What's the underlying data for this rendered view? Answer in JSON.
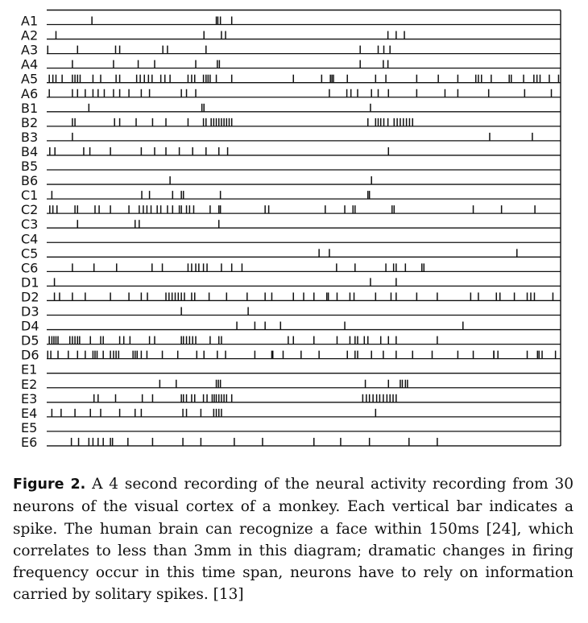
{
  "figure": {
    "label": "Figure 2.",
    "caption": "A 4 second recording of the neural activity recording from 30 neurons of the visual cortex of a monkey. Each vertical bar indicates a spike.  The human brain can recognize a face within 150ms [24], which correlates to less than 3mm in this diagram; dramatic changes in firing frequency occur in this time span, neurons have to rely on information carried by solitary spikes. [13]"
  },
  "chart_data": {
    "type": "scatter",
    "description_units": "spike times, fraction of the 4 s recording (0 = start, 1 = end)",
    "xlim": [
      0,
      1
    ],
    "series": [
      {
        "name": "A1",
        "values": [
          0.088,
          0.33,
          0.333,
          0.338,
          0.36
        ]
      },
      {
        "name": "A2",
        "values": [
          0.018,
          0.306,
          0.34,
          0.348,
          0.664,
          0.68,
          0.696
        ]
      },
      {
        "name": "A3",
        "values": [
          0.002,
          0.06,
          0.134,
          0.142,
          0.226,
          0.235,
          0.31,
          0.61,
          0.645,
          0.656,
          0.668
        ]
      },
      {
        "name": "A4",
        "values": [
          0.05,
          0.13,
          0.178,
          0.21,
          0.29,
          0.332,
          0.336,
          0.61,
          0.655,
          0.664
        ]
      },
      {
        "name": "A5",
        "values": [
          0.005,
          0.012,
          0.018,
          0.03,
          0.05,
          0.055,
          0.06,
          0.065,
          0.09,
          0.105,
          0.135,
          0.142,
          0.175,
          0.182,
          0.19,
          0.198,
          0.205,
          0.222,
          0.23,
          0.24,
          0.275,
          0.282,
          0.288,
          0.305,
          0.31,
          0.314,
          0.318,
          0.33,
          0.36,
          0.48,
          0.535,
          0.552,
          0.555,
          0.558,
          0.585,
          0.64,
          0.66,
          0.72,
          0.762,
          0.8,
          0.835,
          0.84,
          0.846,
          0.865,
          0.9,
          0.904,
          0.928,
          0.948,
          0.954,
          0.96,
          0.978,
          0.996
        ]
      },
      {
        "name": "A6",
        "values": [
          0.005,
          0.05,
          0.06,
          0.075,
          0.09,
          0.1,
          0.112,
          0.13,
          0.142,
          0.16,
          0.184,
          0.2,
          0.262,
          0.272,
          0.29,
          0.55,
          0.584,
          0.592,
          0.605,
          0.632,
          0.645,
          0.665,
          0.72,
          0.775,
          0.8,
          0.86,
          0.93,
          0.982
        ]
      },
      {
        "name": "B1",
        "values": [
          0.082,
          0.302,
          0.306,
          0.63
        ]
      },
      {
        "name": "B2",
        "values": [
          0.05,
          0.055,
          0.132,
          0.142,
          0.174,
          0.206,
          0.232,
          0.275,
          0.305,
          0.31,
          0.32,
          0.325,
          0.33,
          0.335,
          0.34,
          0.345,
          0.35,
          0.355,
          0.36,
          0.625,
          0.64,
          0.645,
          0.65,
          0.656,
          0.664,
          0.676,
          0.682,
          0.688,
          0.694,
          0.7,
          0.706,
          0.712
        ]
      },
      {
        "name": "B3",
        "values": [
          0.05,
          0.862,
          0.945
        ]
      },
      {
        "name": "B4",
        "values": [
          0.006,
          0.016,
          0.072,
          0.084,
          0.124,
          0.184,
          0.21,
          0.232,
          0.258,
          0.284,
          0.31,
          0.335,
          0.352,
          0.665
        ]
      },
      {
        "name": "B5",
        "values": []
      },
      {
        "name": "B6",
        "values": [
          0.24,
          0.632
        ]
      },
      {
        "name": "C1",
        "values": [
          0.01,
          0.185,
          0.2,
          0.245,
          0.262,
          0.266,
          0.338,
          0.625,
          0.628
        ]
      },
      {
        "name": "C2",
        "values": [
          0.006,
          0.012,
          0.02,
          0.055,
          0.06,
          0.094,
          0.102,
          0.124,
          0.16,
          0.18,
          0.188,
          0.195,
          0.203,
          0.215,
          0.222,
          0.235,
          0.245,
          0.258,
          0.262,
          0.272,
          0.278,
          0.286,
          0.318,
          0.335,
          0.338,
          0.425,
          0.432,
          0.542,
          0.58,
          0.596,
          0.6,
          0.672,
          0.676,
          0.83,
          0.885,
          0.95
        ]
      },
      {
        "name": "C3",
        "values": [
          0.06,
          0.172,
          0.18,
          0.335
        ]
      },
      {
        "name": "C4",
        "values": []
      },
      {
        "name": "C5",
        "values": [
          0.53,
          0.55,
          0.915
        ]
      },
      {
        "name": "C6",
        "values": [
          0.05,
          0.092,
          0.136,
          0.205,
          0.225,
          0.275,
          0.282,
          0.29,
          0.296,
          0.305,
          0.312,
          0.34,
          0.36,
          0.38,
          0.564,
          0.6,
          0.66,
          0.675,
          0.68,
          0.698,
          0.73,
          0.734
        ]
      },
      {
        "name": "D1",
        "values": [
          0.015,
          0.63,
          0.68
        ]
      },
      {
        "name": "D2",
        "values": [
          0.015,
          0.025,
          0.05,
          0.075,
          0.124,
          0.16,
          0.184,
          0.196,
          0.232,
          0.238,
          0.244,
          0.25,
          0.256,
          0.262,
          0.268,
          0.282,
          0.288,
          0.316,
          0.35,
          0.39,
          0.425,
          0.438,
          0.48,
          0.5,
          0.52,
          0.545,
          0.548,
          0.565,
          0.59,
          0.598,
          0.64,
          0.67,
          0.68,
          0.72,
          0.76,
          0.825,
          0.84,
          0.875,
          0.882,
          0.91,
          0.935,
          0.942,
          0.949,
          0.985
        ]
      },
      {
        "name": "D3",
        "values": [
          0.262,
          0.392
        ]
      },
      {
        "name": "D4",
        "values": [
          0.37,
          0.405,
          0.425,
          0.455,
          0.58,
          0.81
        ]
      },
      {
        "name": "D5",
        "values": [
          0.005,
          0.01,
          0.014,
          0.018,
          0.022,
          0.045,
          0.05,
          0.055,
          0.06,
          0.064,
          0.085,
          0.105,
          0.11,
          0.142,
          0.15,
          0.162,
          0.2,
          0.21,
          0.262,
          0.266,
          0.272,
          0.278,
          0.284,
          0.29,
          0.318,
          0.335,
          0.34,
          0.47,
          0.48,
          0.52,
          0.565,
          0.59,
          0.6,
          0.605,
          0.618,
          0.625,
          0.65,
          0.665,
          0.68,
          0.76
        ]
      },
      {
        "name": "D6",
        "values": [
          0.002,
          0.008,
          0.022,
          0.042,
          0.06,
          0.075,
          0.09,
          0.094,
          0.098,
          0.11,
          0.124,
          0.13,
          0.135,
          0.14,
          0.168,
          0.172,
          0.176,
          0.184,
          0.195,
          0.225,
          0.255,
          0.292,
          0.306,
          0.332,
          0.348,
          0.405,
          0.438,
          0.44,
          0.46,
          0.495,
          0.53,
          0.585,
          0.6,
          0.605,
          0.632,
          0.655,
          0.68,
          0.712,
          0.75,
          0.8,
          0.83,
          0.87,
          0.87,
          0.878,
          0.935,
          0.955,
          0.958,
          0.964,
          0.99
        ]
      },
      {
        "name": "E1",
        "values": []
      },
      {
        "name": "E2",
        "values": [
          0.22,
          0.252,
          0.33,
          0.334,
          0.338,
          0.62,
          0.665,
          0.688,
          0.692,
          0.698,
          0.702
        ]
      },
      {
        "name": "E3",
        "values": [
          0.092,
          0.1,
          0.134,
          0.186,
          0.206,
          0.262,
          0.266,
          0.272,
          0.282,
          0.288,
          0.305,
          0.312,
          0.322,
          0.326,
          0.33,
          0.335,
          0.34,
          0.345,
          0.35,
          0.36,
          0.615,
          0.622,
          0.628,
          0.635,
          0.642,
          0.648,
          0.655,
          0.662,
          0.668,
          0.674,
          0.68
        ]
      },
      {
        "name": "E4",
        "values": [
          0.01,
          0.028,
          0.055,
          0.085,
          0.105,
          0.142,
          0.172,
          0.184,
          0.265,
          0.272,
          0.3,
          0.325,
          0.33,
          0.335,
          0.34,
          0.64
        ]
      },
      {
        "name": "E5",
        "values": []
      },
      {
        "name": "E6",
        "values": [
          0.048,
          0.062,
          0.082,
          0.09,
          0.1,
          0.11,
          0.124,
          0.128,
          0.158,
          0.206,
          0.265,
          0.3,
          0.365,
          0.42,
          0.52,
          0.572,
          0.628,
          0.705,
          0.76
        ]
      }
    ]
  }
}
